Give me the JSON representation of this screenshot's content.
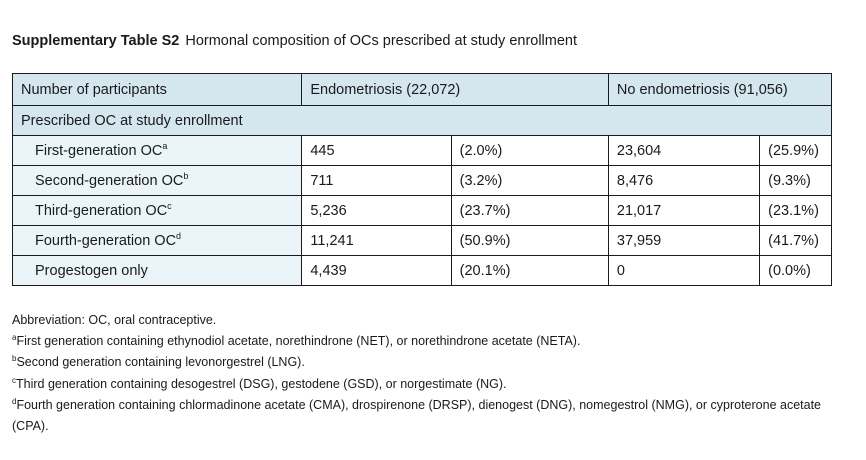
{
  "caption": {
    "lead": "Supplementary Table S2",
    "text": "Hormonal composition of OCs prescribed at study enrollment"
  },
  "table": {
    "header": {
      "participants_label": "Number of participants",
      "endo_label": "Endometriosis (22,072)",
      "noendo_label": "No endometriosis (91,056)"
    },
    "section_label": "Prescribed OC at study enrollment",
    "rows": [
      {
        "label": "First-generation OC",
        "sup": "a",
        "endo_n": "445",
        "endo_pct": "(2.0%)",
        "noendo_n": "23,604",
        "noendo_pct": "(25.9%)"
      },
      {
        "label": "Second-generation OC",
        "sup": "b",
        "endo_n": "711",
        "endo_pct": "(3.2%)",
        "noendo_n": "8,476",
        "noendo_pct": "(9.3%)"
      },
      {
        "label": "Third-generation OC",
        "sup": "c",
        "endo_n": "5,236",
        "endo_pct": "(23.7%)",
        "noendo_n": "21,017",
        "noendo_pct": "(23.1%)"
      },
      {
        "label": "Fourth-generation OC",
        "sup": "d",
        "endo_n": "11,241",
        "endo_pct": "(50.9%)",
        "noendo_n": "37,959",
        "noendo_pct": "(41.7%)"
      },
      {
        "label": "Progestogen only",
        "sup": "",
        "endo_n": "4,439",
        "endo_pct": "(20.1%)",
        "noendo_n": "0",
        "noendo_pct": "(0.0%)"
      }
    ]
  },
  "footnotes": {
    "abbreviation": "Abbreviation: OC, oral contraceptive.",
    "a": {
      "mark": "a",
      "text": "First generation containing ethynodiol acetate, norethindrone (NET), or norethindrone acetate (NETA)."
    },
    "b": {
      "mark": "b",
      "text": "Second generation containing levonorgestrel (LNG)."
    },
    "c": {
      "mark": "c",
      "text": "Third generation containing desogestrel (DSG), gestodene (GSD), or norgestimate (NG)."
    },
    "d": {
      "mark": "d",
      "text": "Fourth generation containing chlormadinone acetate (CMA), drospirenone (DRSP), dienogest (DNG), nomegestrol (NMG), or cyproterone acetate (CPA)."
    }
  }
}
